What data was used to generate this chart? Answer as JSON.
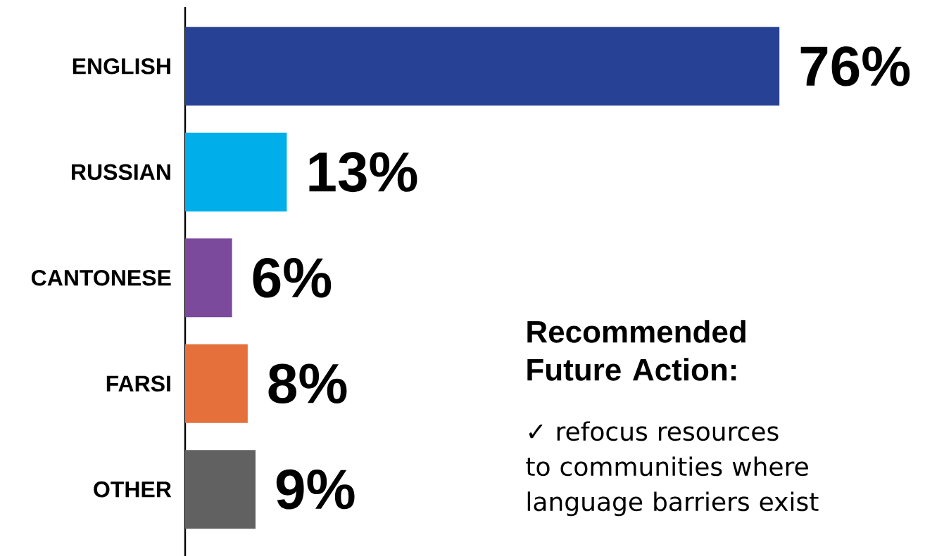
{
  "chart_data": {
    "type": "bar",
    "orientation": "horizontal",
    "categories": [
      "ENGLISH",
      "RUSSIAN",
      "CANTONESE",
      "FARSI",
      "OTHER"
    ],
    "values": [
      76,
      13,
      6,
      8,
      9
    ],
    "value_labels": [
      "76%",
      "13%",
      "6%",
      "8%",
      "9%"
    ],
    "colors": [
      "#274295",
      "#00aeea",
      "#7b4a9c",
      "#e5703b",
      "#616161"
    ],
    "annotations": [
      "Recommended Future Action:",
      "✓ refocus resources to communities where language barriers exist"
    ]
  }
}
